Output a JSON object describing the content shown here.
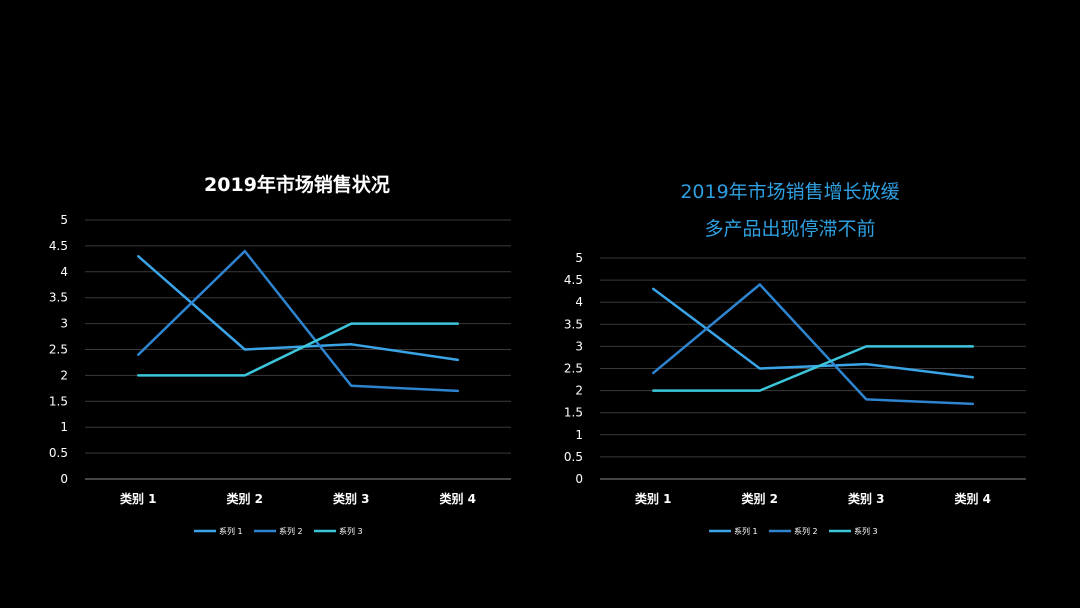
{
  "chart_data": [
    {
      "type": "line",
      "title": "2019年市场销售状况",
      "categories": [
        "类别 1",
        "类别 2",
        "类别 3",
        "类别 4"
      ],
      "ylim": [
        0,
        5
      ],
      "yticks": [
        "0",
        "0.5",
        "1",
        "1.5",
        "2",
        "2.5",
        "3",
        "3.5",
        "4",
        "4.5",
        "5"
      ],
      "grid": true,
      "legend": "bottom",
      "series": [
        {
          "name": "系列 1",
          "values": [
            4.3,
            2.5,
            2.6,
            2.3
          ],
          "color": "#3aa4e6"
        },
        {
          "name": "系列 2",
          "values": [
            2.4,
            4.4,
            1.8,
            1.7
          ],
          "color": "#2e84cf"
        },
        {
          "name": "系列 3",
          "values": [
            2.0,
            2.0,
            3.0,
            3.0
          ],
          "color": "#3cc6dc"
        }
      ]
    },
    {
      "type": "line",
      "title_lines": [
        "2019年市场销售增长放缓",
        "多产品出现停滞不前"
      ],
      "categories": [
        "类别 1",
        "类别 2",
        "类别 3",
        "类别 4"
      ],
      "ylim": [
        0,
        5
      ],
      "yticks": [
        "0",
        "0.5",
        "1",
        "1.5",
        "2",
        "2.5",
        "3",
        "3.5",
        "4",
        "4.5",
        "5"
      ],
      "grid": true,
      "legend": "bottom",
      "series": [
        {
          "name": "系列 1",
          "values": [
            4.3,
            2.5,
            2.6,
            2.3
          ],
          "color": "#3aa4e6"
        },
        {
          "name": "系列 2",
          "values": [
            2.4,
            4.4,
            1.8,
            1.7
          ],
          "color": "#2e84cf"
        },
        {
          "name": "系列 3",
          "values": [
            2.0,
            2.0,
            3.0,
            3.0
          ],
          "color": "#3cc6dc"
        }
      ]
    }
  ]
}
